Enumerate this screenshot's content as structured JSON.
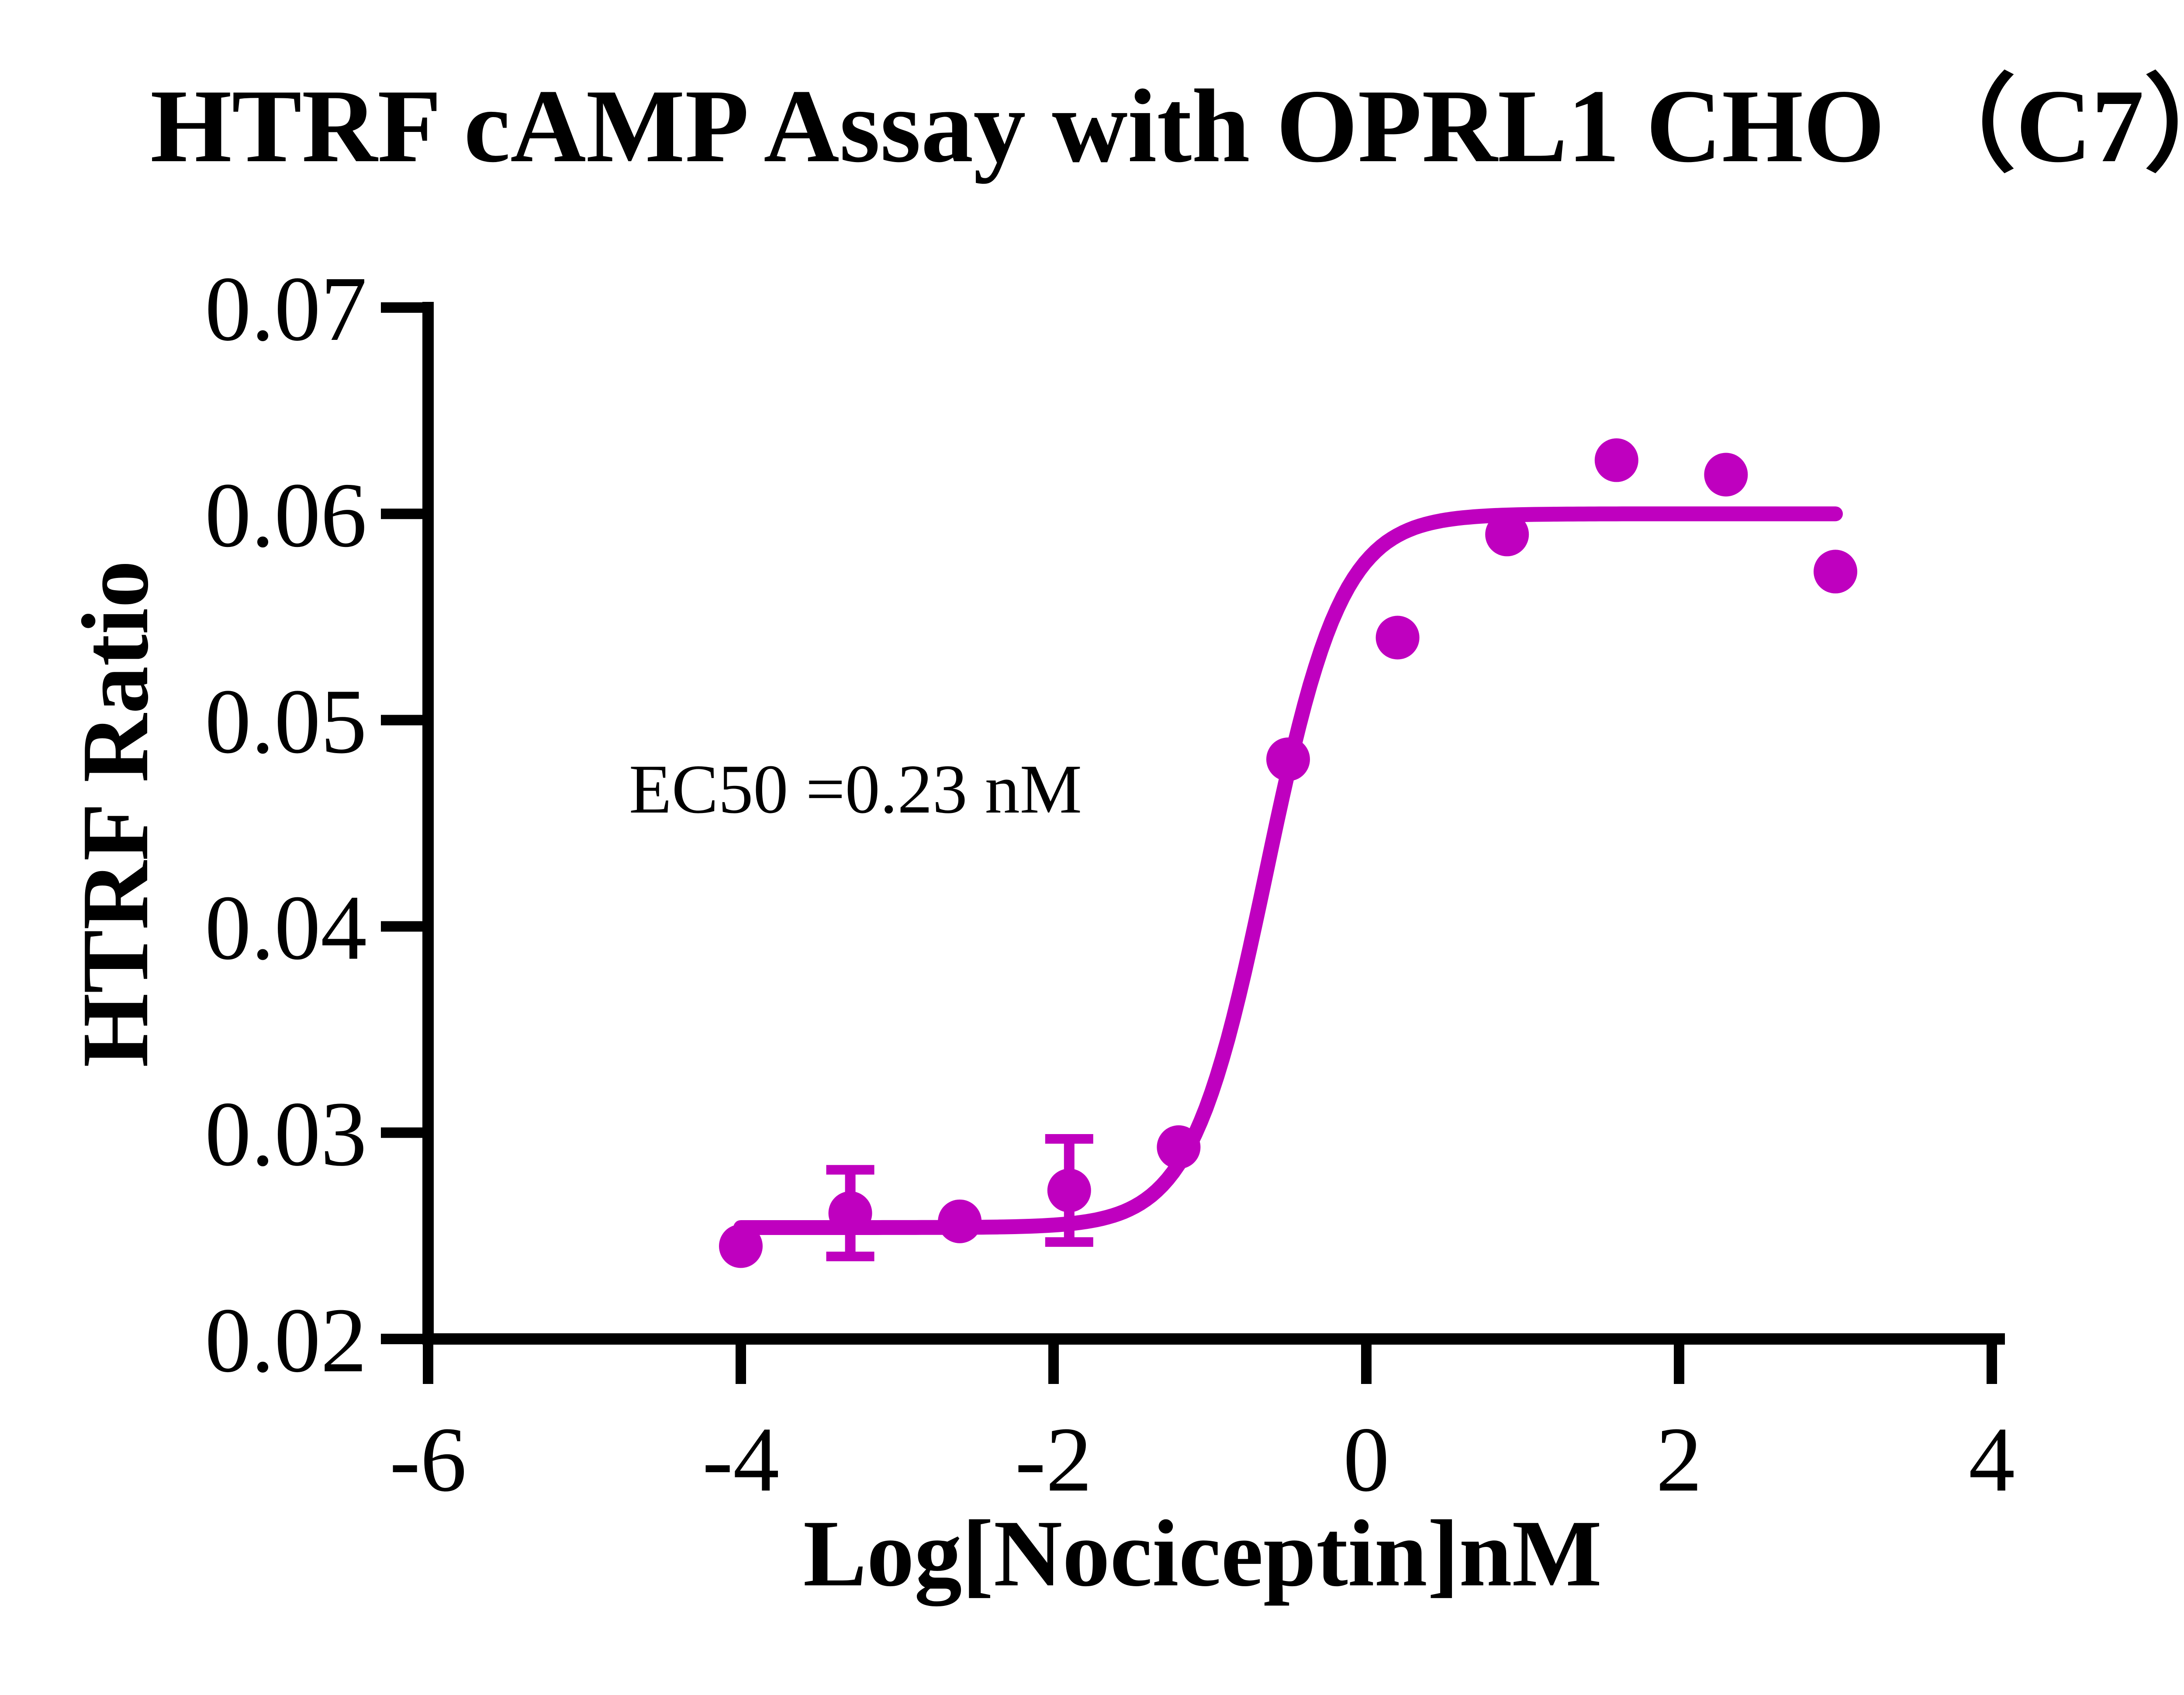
{
  "chart_data": {
    "type": "scatter",
    "title": "HTRF cAMP Assay with OPRL1 CHO （C7）",
    "xlabel": "Log[Nociceptin]nM",
    "ylabel": "HTRF Ratio",
    "annotation": "EC50 =0.23 nM",
    "x_range": [
      -6,
      4
    ],
    "y_range": [
      0.02,
      0.07
    ],
    "grid": false,
    "legend_position": "none",
    "x_ticks": [
      {
        "label": "-6",
        "value": -6
      },
      {
        "label": "-4",
        "value": -4
      },
      {
        "label": "-2",
        "value": -2
      },
      {
        "label": "0",
        "value": 0
      },
      {
        "label": "2",
        "value": 2
      },
      {
        "label": "4",
        "value": 4
      }
    ],
    "y_ticks": [
      {
        "label": "0.07",
        "value": 0.07
      },
      {
        "label": "0.06",
        "value": 0.06
      },
      {
        "label": "0.05",
        "value": 0.05
      },
      {
        "label": "0.04",
        "value": 0.04
      },
      {
        "label": "0.03",
        "value": 0.03
      },
      {
        "label": "0.02",
        "value": 0.02
      }
    ],
    "series": [
      {
        "name": "Nociceptin",
        "color": "#BF00BF",
        "marker": "circle",
        "points": [
          {
            "x": -4.0,
            "y": 0.0245,
            "err": 0
          },
          {
            "x": -3.3,
            "y": 0.0261,
            "err": 0.0021
          },
          {
            "x": -2.6,
            "y": 0.0257,
            "err": 0
          },
          {
            "x": -1.9,
            "y": 0.0272,
            "err": 0.0025
          },
          {
            "x": -1.2,
            "y": 0.0293,
            "err": 0
          },
          {
            "x": -0.5,
            "y": 0.0481,
            "err": 0
          },
          {
            "x": 0.2,
            "y": 0.054,
            "err": 0
          },
          {
            "x": 0.9,
            "y": 0.059,
            "err": 0
          },
          {
            "x": 1.6,
            "y": 0.0626,
            "err": 0
          },
          {
            "x": 2.3,
            "y": 0.0619,
            "err": 0
          },
          {
            "x": 3.0,
            "y": 0.0572,
            "err": 0
          }
        ]
      }
    ],
    "fit_curve": {
      "model": "4PL",
      "bottom": 0.0254,
      "top": 0.06,
      "log_ec50": -0.638,
      "hill": 1.8,
      "ec50_nM": 0.23,
      "x_start": -4.0,
      "x_end": 3.0,
      "color": "#BF00BF"
    },
    "axis_color": "#000000",
    "background_color": "#ffffff"
  }
}
